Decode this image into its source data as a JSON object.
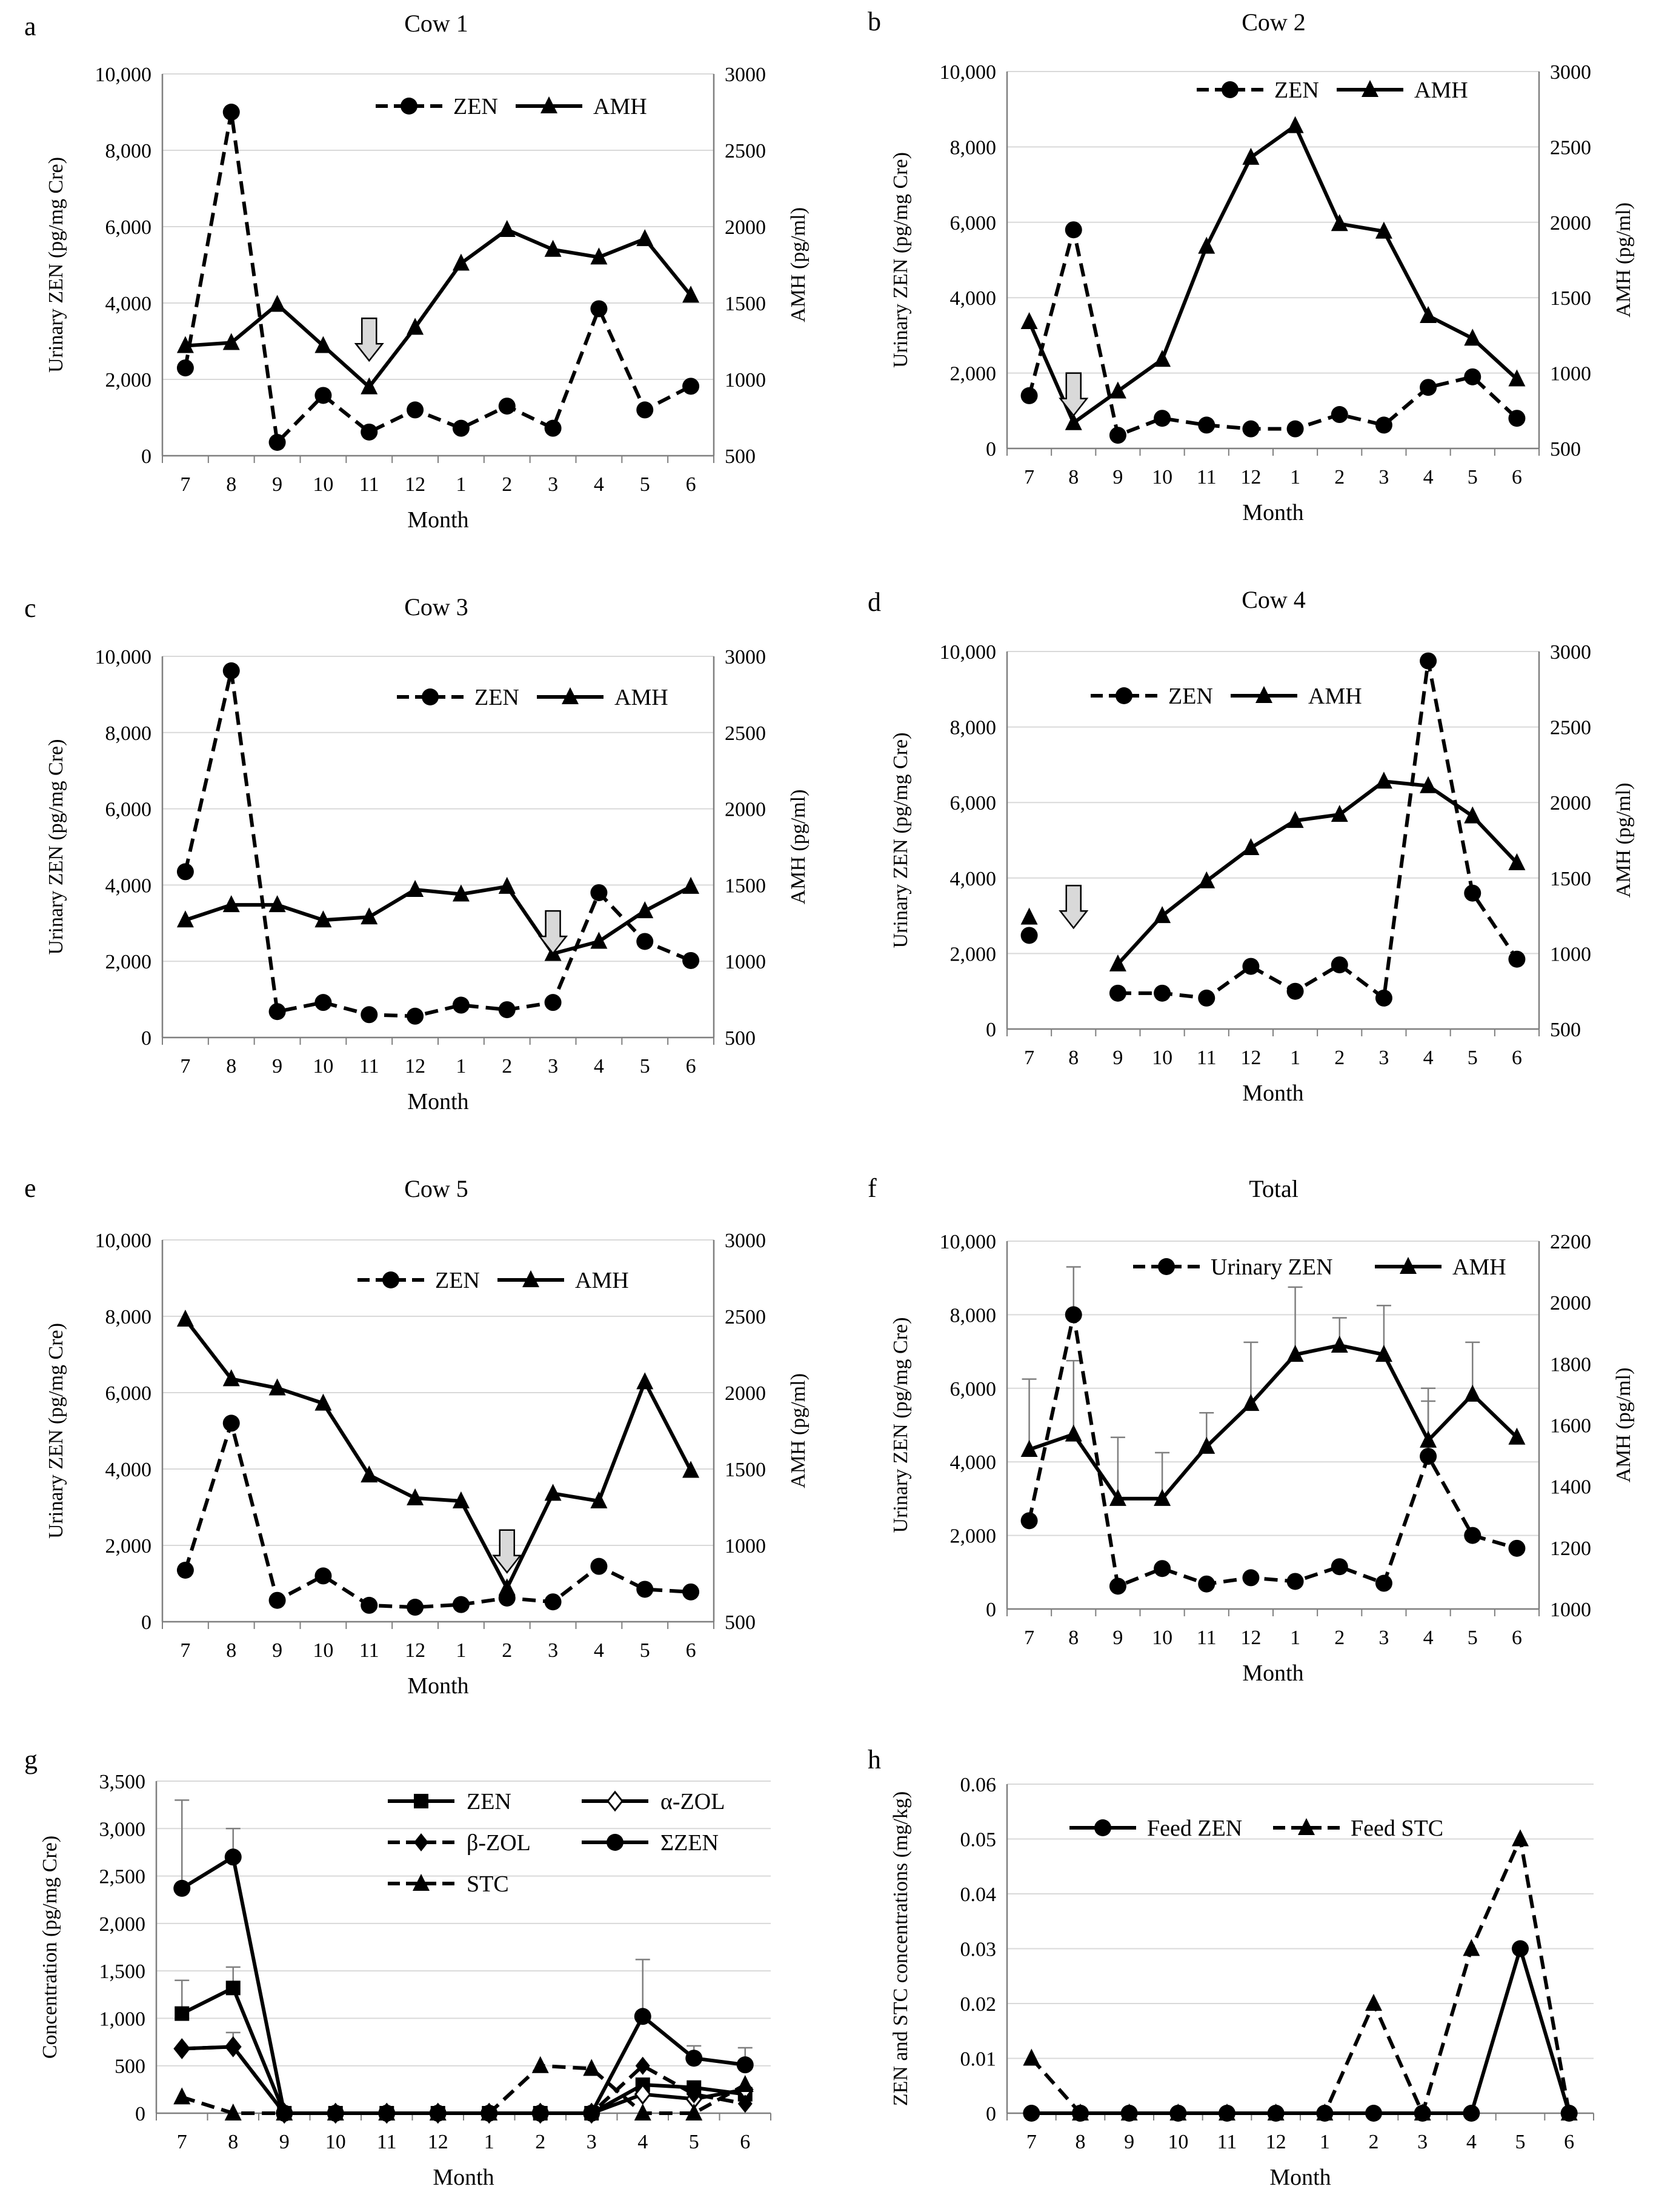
{
  "style": {
    "axis_color": "#7f7f7f",
    "grid_color": "#d9d9d9",
    "line_color": "#000000",
    "arrow_fill": "#d9d9d9",
    "errorbar_color": "#7f7f7f"
  },
  "chart_data": [
    {
      "panel_letter": "a",
      "type": "line",
      "title": "Cow 1",
      "xlabel": "Month",
      "ylabel": "Urinary ZEN (pg/mg Cre)",
      "y2label": "AMH (pg/ml)",
      "categories": [
        "7",
        "8",
        "9",
        "10",
        "11",
        "12",
        "1",
        "2",
        "3",
        "4",
        "5",
        "6"
      ],
      "ylim": [
        0,
        10000
      ],
      "yticks": [
        0,
        2000,
        4000,
        6000,
        8000,
        10000
      ],
      "ytick_labels": [
        "0",
        "2,000",
        "4,000",
        "6,000",
        "8,000",
        "10,000"
      ],
      "y2lim": [
        500,
        3000
      ],
      "y2ticks": [
        500,
        1000,
        1500,
        2000,
        2500,
        3000
      ],
      "y2tick_labels": [
        "500",
        "1000",
        "1500",
        "2000",
        "2500",
        "3000"
      ],
      "legend_position": "top-right",
      "series": [
        {
          "name": "ZEN",
          "axis": "left",
          "dash": true,
          "marker": "circle",
          "values": [
            2300,
            9000,
            350,
            1580,
            620,
            1200,
            720,
            1300,
            720,
            3850,
            1200,
            1820
          ]
        },
        {
          "name": "AMH",
          "axis": "right",
          "dash": false,
          "marker": "triangle",
          "values": [
            1220,
            1240,
            1490,
            1220,
            950,
            1340,
            1760,
            1980,
            1850,
            1800,
            1920,
            1550
          ]
        }
      ],
      "arrow_at": "11",
      "arrow_value": 1400
    },
    {
      "panel_letter": "b",
      "type": "line",
      "title": "Cow 2",
      "xlabel": "Month",
      "ylabel": "Urinary ZEN (pg/mg Cre)",
      "y2label": "AMH (pg/ml)",
      "categories": [
        "7",
        "8",
        "9",
        "10",
        "11",
        "12",
        "1",
        "2",
        "3",
        "4",
        "5",
        "6"
      ],
      "ylim": [
        0,
        10000
      ],
      "yticks": [
        0,
        2000,
        4000,
        6000,
        8000,
        10000
      ],
      "ytick_labels": [
        "0",
        "2,000",
        "4,000",
        "6,000",
        "8,000",
        "10,000"
      ],
      "y2lim": [
        500,
        3000
      ],
      "y2ticks": [
        500,
        1000,
        1500,
        2000,
        2500,
        3000
      ],
      "y2tick_labels": [
        "500",
        "1000",
        "1500",
        "2000",
        "2500",
        "3000"
      ],
      "legend_position": "top-right",
      "series": [
        {
          "name": "ZEN",
          "axis": "left",
          "dash": true,
          "marker": "circle",
          "values": [
            1400,
            5800,
            350,
            800,
            620,
            520,
            520,
            900,
            620,
            1620,
            1900,
            800
          ]
        },
        {
          "name": "AMH",
          "axis": "right",
          "dash": false,
          "marker": "triangle",
          "values": [
            1340,
            670,
            880,
            1090,
            1840,
            2430,
            2640,
            1990,
            1940,
            1380,
            1230,
            960
          ]
        }
      ],
      "arrow_at": "8",
      "arrow_value": 1000
    },
    {
      "panel_letter": "c",
      "type": "line",
      "title": "Cow 3",
      "xlabel": "Month",
      "ylabel": "Urinary ZEN (pg/mg Cre)",
      "y2label": "AMH (pg/ml)",
      "categories": [
        "7",
        "8",
        "9",
        "10",
        "11",
        "12",
        "1",
        "2",
        "3",
        "4",
        "5",
        "6"
      ],
      "ylim": [
        0,
        10000
      ],
      "yticks": [
        0,
        2000,
        4000,
        6000,
        8000,
        10000
      ],
      "ytick_labels": [
        "0",
        "2,000",
        "4,000",
        "6,000",
        "8,000",
        "10,000"
      ],
      "y2lim": [
        500,
        3000
      ],
      "y2ticks": [
        500,
        1000,
        1500,
        2000,
        2500,
        3000
      ],
      "y2tick_labels": [
        "500",
        "1000",
        "1500",
        "2000",
        "2500",
        "3000"
      ],
      "legend_position": "top-right",
      "series": [
        {
          "name": "ZEN",
          "axis": "left",
          "dash": true,
          "marker": "circle",
          "values": [
            4350,
            9620,
            680,
            920,
            600,
            560,
            850,
            730,
            920,
            3800,
            2520,
            2020
          ]
        },
        {
          "name": "AMH",
          "axis": "right",
          "dash": false,
          "marker": "triangle",
          "values": [
            1270,
            1370,
            1370,
            1270,
            1290,
            1470,
            1440,
            1490,
            1050,
            1130,
            1330,
            1490
          ]
        }
      ],
      "arrow_at": "3",
      "arrow_value": 1330
    },
    {
      "panel_letter": "d",
      "type": "line",
      "title": "Cow 4",
      "xlabel": "Month",
      "ylabel": "Urinary ZEN (pg/mg Cre)",
      "y2label": "AMH (pg/ml)",
      "categories": [
        "7",
        "8",
        "9",
        "10",
        "11",
        "12",
        "1",
        "2",
        "3",
        "4",
        "5",
        "6"
      ],
      "ylim": [
        0,
        10000
      ],
      "yticks": [
        0,
        2000,
        4000,
        6000,
        8000,
        10000
      ],
      "ytick_labels": [
        "0",
        "2,000",
        "4,000",
        "6,000",
        "8,000",
        "10,000"
      ],
      "y2lim": [
        500,
        3000
      ],
      "y2ticks": [
        500,
        1000,
        1500,
        2000,
        2500,
        3000
      ],
      "y2tick_labels": [
        "500",
        "1000",
        "1500",
        "2000",
        "2500",
        "3000"
      ],
      "legend_position": "top-left",
      "series": [
        {
          "name": "ZEN",
          "axis": "left",
          "dash": true,
          "marker": "circle",
          "values": [
            2480,
            null,
            950,
            950,
            820,
            1660,
            1000,
            1700,
            820,
            9750,
            3600,
            1850
          ]
        },
        {
          "name": "AMH",
          "axis": "right",
          "dash": false,
          "marker": "triangle",
          "values": [
            1240,
            null,
            930,
            1250,
            1480,
            1700,
            1880,
            1920,
            2140,
            2110,
            1910,
            1600
          ]
        }
      ],
      "arrow_at": "8",
      "arrow_value": 1450
    },
    {
      "panel_letter": "e",
      "type": "line",
      "title": "Cow 5",
      "xlabel": "Month",
      "ylabel": "Urinary ZEN (pg/mg Cre)",
      "y2label": "AMH (pg/ml)",
      "categories": [
        "7",
        "8",
        "9",
        "10",
        "11",
        "12",
        "1",
        "2",
        "3",
        "4",
        "5",
        "6"
      ],
      "ylim": [
        0,
        10000
      ],
      "yticks": [
        0,
        2000,
        4000,
        6000,
        8000,
        10000
      ],
      "ytick_labels": [
        "0",
        "2,000",
        "4,000",
        "6,000",
        "8,000",
        "10,000"
      ],
      "y2lim": [
        500,
        3000
      ],
      "y2ticks": [
        500,
        1000,
        1500,
        2000,
        2500,
        3000
      ],
      "y2tick_labels": [
        "500",
        "1000",
        "1500",
        "2000",
        "2500",
        "3000"
      ],
      "legend_position": "top-right",
      "series": [
        {
          "name": "ZEN",
          "axis": "left",
          "dash": true,
          "marker": "circle",
          "values": [
            1350,
            5200,
            560,
            1200,
            430,
            380,
            450,
            620,
            520,
            1450,
            850,
            780
          ]
        },
        {
          "name": "AMH",
          "axis": "right",
          "dash": false,
          "marker": "triangle",
          "values": [
            2480,
            2090,
            2030,
            1930,
            1460,
            1310,
            1290,
            720,
            1340,
            1290,
            2070,
            1490
          ]
        }
      ],
      "arrow_at": "2",
      "arrow_value": 1100
    },
    {
      "panel_letter": "f",
      "type": "line",
      "title": "Total",
      "xlabel": "Month",
      "ylabel": "Urinary ZEN (pg/mg Cre)",
      "y2label": "AMH (pg/ml)",
      "categories": [
        "7",
        "8",
        "9",
        "10",
        "11",
        "12",
        "1",
        "2",
        "3",
        "4",
        "5",
        "6"
      ],
      "ylim": [
        0,
        10000
      ],
      "yticks": [
        0,
        2000,
        4000,
        6000,
        8000,
        10000
      ],
      "ytick_labels": [
        "0",
        "2,000",
        "4,000",
        "6,000",
        "8,000",
        "10,000"
      ],
      "y2lim": [
        1000,
        2200
      ],
      "y2ticks": [
        1000,
        1200,
        1400,
        1600,
        1800,
        2000,
        2200
      ],
      "y2tick_labels": [
        "1000",
        "1200",
        "1400",
        "1600",
        "1800",
        "2000",
        "2200"
      ],
      "legend_position": "top-right",
      "series": [
        {
          "name": "Urinary ZEN",
          "axis": "left",
          "dash": true,
          "marker": "circle",
          "values": [
            2400,
            8000,
            620,
            1100,
            680,
            850,
            750,
            1150,
            700,
            4150,
            2000,
            1650
          ]
        },
        {
          "name": "AMH",
          "axis": "right",
          "dash": false,
          "marker": "triangle",
          "values": [
            1520,
            1570,
            1360,
            1360,
            1530,
            1670,
            1830,
            1860,
            1830,
            1550,
            1700,
            1560
          ],
          "error_plus": [
            230,
            240,
            200,
            150,
            110,
            200,
            220,
            90,
            160,
            170,
            170,
            0
          ]
        }
      ],
      "zen_error_plus": [
        0,
        1300,
        0,
        0,
        0,
        0,
        0,
        0,
        0,
        1500,
        0,
        0
      ]
    },
    {
      "panel_letter": "g",
      "type": "line",
      "title": "",
      "xlabel": "Month",
      "ylabel": "Concentration (pg/mg Cre)",
      "categories": [
        "7",
        "8",
        "9",
        "10",
        "11",
        "12",
        "1",
        "2",
        "3",
        "4",
        "5",
        "6"
      ],
      "ylim": [
        0,
        3500
      ],
      "yticks": [
        0,
        500,
        1000,
        1500,
        2000,
        2500,
        3000,
        3500
      ],
      "ytick_labels": [
        "0",
        "500",
        "1,000",
        "1,500",
        "2,000",
        "2,500",
        "3,000",
        "3,500"
      ],
      "legend_position": "top-center",
      "series": [
        {
          "name": "ZEN",
          "dash": false,
          "marker": "square",
          "values": [
            1050,
            1320,
            0,
            0,
            0,
            0,
            0,
            0,
            0,
            300,
            270,
            200
          ],
          "error_plus": [
            350,
            220,
            0,
            0,
            0,
            0,
            0,
            0,
            0,
            0,
            0,
            0
          ]
        },
        {
          "name": "α-ZOL",
          "dash": false,
          "marker": "diamond-open",
          "values": [
            680,
            700,
            0,
            0,
            0,
            0,
            0,
            0,
            0,
            200,
            150,
            250
          ]
        },
        {
          "name": "β-ZOL",
          "dash": true,
          "marker": "diamond",
          "values": [
            680,
            700,
            0,
            0,
            0,
            0,
            0,
            0,
            0,
            500,
            200,
            100
          ],
          "error_plus": [
            0,
            150,
            0,
            0,
            0,
            0,
            0,
            0,
            0,
            0,
            0,
            0
          ]
        },
        {
          "name": "ΣZEN",
          "dash": false,
          "marker": "circle",
          "values": [
            2370,
            2700,
            0,
            0,
            0,
            0,
            0,
            0,
            0,
            1020,
            580,
            510
          ],
          "error_plus": [
            930,
            300,
            0,
            0,
            0,
            0,
            0,
            0,
            0,
            600,
            130,
            180
          ]
        },
        {
          "name": "STC",
          "dash": true,
          "marker": "triangle",
          "values": [
            170,
            0,
            0,
            0,
            0,
            0,
            0,
            500,
            470,
            0,
            0,
            300
          ]
        }
      ]
    },
    {
      "panel_letter": "h",
      "type": "line",
      "title": "",
      "xlabel": "Month",
      "ylabel": "ZEN and STC concentrations (mg/kg)",
      "categories": [
        "7",
        "8",
        "9",
        "10",
        "11",
        "12",
        "1",
        "2",
        "3",
        "4",
        "5",
        "6"
      ],
      "ylim": [
        0,
        0.06
      ],
      "yticks": [
        0,
        0.01,
        0.02,
        0.03,
        0.04,
        0.05,
        0.06
      ],
      "ytick_labels": [
        "0",
        "0.01",
        "0.02",
        "0.03",
        "0.04",
        "0.05",
        "0.06"
      ],
      "legend_position": "top",
      "series": [
        {
          "name": "Feed ZEN",
          "dash": false,
          "marker": "circle",
          "values": [
            0,
            0,
            0,
            0,
            0,
            0,
            0,
            0,
            0,
            0,
            0.03,
            0
          ]
        },
        {
          "name": "Feed STC",
          "dash": true,
          "marker": "triangle",
          "values": [
            0.01,
            0,
            0,
            0,
            0,
            0,
            0,
            0.02,
            0,
            0.03,
            0.05,
            0
          ]
        }
      ]
    }
  ]
}
